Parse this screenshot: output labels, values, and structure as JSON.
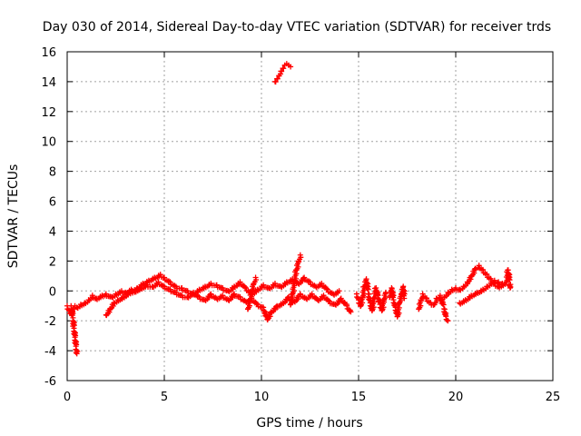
{
  "chart_data": {
    "type": "scatter",
    "title": "Day 030 of 2014, Sidereal Day-to-day VTEC variation (SDTVAR) for receiver trds",
    "xlabel": "GPS time / hours",
    "ylabel": "SDTVAR / TECUs",
    "xlim": [
      0,
      25
    ],
    "ylim": [
      -6,
      16
    ],
    "xticks": [
      0,
      5,
      10,
      15,
      20,
      25
    ],
    "yticks": [
      -6,
      -4,
      -2,
      0,
      2,
      4,
      6,
      8,
      10,
      12,
      14,
      16
    ],
    "grid": true,
    "marker": "+",
    "color": "#ff0000",
    "series": [
      {
        "name": "SDTVAR",
        "segments": [
          [
            [
              0.0,
              -1.0
            ],
            [
              0.1,
              -1.3
            ],
            [
              0.2,
              -1.5
            ],
            [
              0.3,
              -1.2
            ],
            [
              0.4,
              -1.0
            ],
            [
              0.5,
              -1.1
            ],
            [
              0.7,
              -0.9
            ],
            [
              0.9,
              -0.8
            ],
            [
              1.1,
              -0.6
            ],
            [
              1.3,
              -0.3
            ],
            [
              1.5,
              -0.5
            ],
            [
              1.8,
              -0.3
            ],
            [
              2.0,
              -0.2
            ],
            [
              2.3,
              -0.4
            ],
            [
              2.5,
              -0.2
            ],
            [
              2.8,
              0.0
            ],
            [
              3.0,
              -0.1
            ],
            [
              3.3,
              0.1
            ],
            [
              3.6,
              0.2
            ],
            [
              3.9,
              0.5
            ],
            [
              4.2,
              0.7
            ],
            [
              4.5,
              0.9
            ],
            [
              4.8,
              1.1
            ],
            [
              5.0,
              0.9
            ],
            [
              5.3,
              0.6
            ],
            [
              5.6,
              0.3
            ],
            [
              5.9,
              0.2
            ],
            [
              6.2,
              0.0
            ],
            [
              6.5,
              -0.2
            ],
            [
              6.8,
              0.1
            ],
            [
              7.1,
              0.3
            ],
            [
              7.4,
              0.5
            ],
            [
              7.7,
              0.4
            ],
            [
              8.0,
              0.2
            ],
            [
              8.3,
              0.0
            ],
            [
              8.6,
              0.3
            ],
            [
              8.9,
              0.6
            ],
            [
              9.2,
              0.2
            ],
            [
              9.5,
              -0.2
            ],
            [
              9.8,
              0.1
            ],
            [
              10.1,
              0.4
            ],
            [
              10.4,
              0.2
            ],
            [
              10.7,
              0.5
            ],
            [
              11.0,
              0.3
            ],
            [
              11.3,
              0.6
            ],
            [
              11.6,
              0.8
            ],
            [
              11.9,
              0.5
            ],
            [
              12.2,
              0.9
            ],
            [
              12.5,
              0.6
            ],
            [
              12.8,
              0.3
            ],
            [
              13.1,
              0.5
            ],
            [
              13.4,
              0.1
            ],
            [
              13.7,
              -0.2
            ],
            [
              14.0,
              0.0
            ]
          ],
          [
            [
              0.2,
              -1.0
            ],
            [
              0.3,
              -1.8
            ],
            [
              0.35,
              -2.5
            ],
            [
              0.4,
              -3.1
            ],
            [
              0.45,
              -3.7
            ],
            [
              0.5,
              -4.2
            ]
          ],
          [
            [
              2.0,
              -1.6
            ],
            [
              2.2,
              -1.2
            ],
            [
              2.4,
              -0.8
            ],
            [
              2.6,
              -0.6
            ],
            [
              2.9,
              -0.4
            ],
            [
              3.2,
              -0.1
            ],
            [
              3.5,
              0.0
            ],
            [
              3.8,
              0.2
            ],
            [
              4.1,
              0.4
            ],
            [
              4.4,
              0.3
            ],
            [
              4.7,
              0.6
            ],
            [
              5.0,
              0.3
            ],
            [
              5.3,
              0.1
            ],
            [
              5.6,
              -0.1
            ],
            [
              5.9,
              -0.3
            ],
            [
              6.2,
              -0.4
            ],
            [
              6.5,
              -0.1
            ],
            [
              6.8,
              -0.4
            ],
            [
              7.1,
              -0.6
            ],
            [
              7.4,
              -0.2
            ],
            [
              7.7,
              -0.5
            ],
            [
              8.0,
              -0.3
            ],
            [
              8.3,
              -0.6
            ],
            [
              8.6,
              -0.2
            ],
            [
              8.9,
              -0.4
            ],
            [
              9.2,
              -0.7
            ],
            [
              9.5,
              -0.5
            ],
            [
              9.8,
              -0.9
            ],
            [
              10.1,
              -1.1
            ],
            [
              10.3,
              -1.9
            ],
            [
              10.5,
              -1.4
            ],
            [
              10.8,
              -1.0
            ],
            [
              11.1,
              -0.8
            ],
            [
              11.4,
              -0.4
            ],
            [
              11.7,
              -0.7
            ],
            [
              12.0,
              -0.2
            ],
            [
              12.3,
              -0.5
            ],
            [
              12.6,
              -0.2
            ],
            [
              12.9,
              -0.6
            ],
            [
              13.2,
              -0.3
            ],
            [
              13.5,
              -0.7
            ],
            [
              13.8,
              -0.9
            ],
            [
              14.1,
              -0.5
            ],
            [
              14.4,
              -1.0
            ],
            [
              14.6,
              -1.4
            ]
          ],
          [
            [
              9.3,
              -1.2
            ],
            [
              9.4,
              -0.6
            ],
            [
              9.5,
              0.0
            ],
            [
              9.6,
              0.5
            ],
            [
              9.7,
              0.9
            ]
          ],
          [
            [
              11.5,
              -0.9
            ],
            [
              11.6,
              -0.2
            ],
            [
              11.7,
              0.6
            ],
            [
              11.8,
              1.4
            ],
            [
              11.9,
              2.0
            ],
            [
              12.0,
              2.4
            ]
          ],
          [
            [
              10.7,
              14.0
            ],
            [
              10.8,
              14.2
            ],
            [
              10.9,
              14.4
            ],
            [
              11.0,
              14.7
            ],
            [
              11.1,
              14.9
            ],
            [
              11.2,
              15.1
            ],
            [
              11.3,
              15.2
            ],
            [
              11.4,
              15.1
            ],
            [
              11.5,
              15.0
            ]
          ],
          [
            [
              14.9,
              -0.2
            ],
            [
              15.0,
              -0.6
            ],
            [
              15.1,
              -1.0
            ],
            [
              15.2,
              -0.4
            ],
            [
              15.3,
              0.3
            ],
            [
              15.4,
              0.8
            ],
            [
              15.5,
              -0.2
            ],
            [
              15.6,
              -0.8
            ],
            [
              15.7,
              -1.3
            ],
            [
              15.8,
              -0.5
            ],
            [
              15.9,
              0.2
            ],
            [
              16.0,
              -0.3
            ],
            [
              16.1,
              -0.9
            ],
            [
              16.2,
              -1.3
            ],
            [
              16.3,
              -0.6
            ],
            [
              16.4,
              -0.1
            ]
          ],
          [
            [
              16.6,
              -0.4
            ],
            [
              16.7,
              0.2
            ],
            [
              16.8,
              -0.6
            ],
            [
              16.9,
              -1.1
            ],
            [
              17.0,
              -1.7
            ],
            [
              17.1,
              -0.8
            ],
            [
              17.2,
              -0.2
            ],
            [
              17.3,
              0.3
            ],
            [
              17.35,
              -0.5
            ]
          ],
          [
            [
              18.1,
              -1.2
            ],
            [
              18.2,
              -0.6
            ],
            [
              18.3,
              -0.2
            ],
            [
              18.5,
              -0.5
            ],
            [
              18.7,
              -0.8
            ],
            [
              18.9,
              -0.9
            ],
            [
              19.0,
              -0.5
            ],
            [
              19.2,
              -0.3
            ],
            [
              19.4,
              -1.2
            ],
            [
              19.5,
              -1.7
            ],
            [
              19.6,
              -2.0
            ]
          ],
          [
            [
              19.4,
              -0.4
            ],
            [
              19.6,
              -0.1
            ],
            [
              19.8,
              0.1
            ],
            [
              20.0,
              0.2
            ],
            [
              20.2,
              0.1
            ],
            [
              20.4,
              0.3
            ],
            [
              20.6,
              0.6
            ],
            [
              20.8,
              1.0
            ],
            [
              21.0,
              1.5
            ],
            [
              21.2,
              1.7
            ],
            [
              21.4,
              1.4
            ],
            [
              21.6,
              1.1
            ],
            [
              21.8,
              0.8
            ],
            [
              22.0,
              0.5
            ],
            [
              22.2,
              0.3
            ],
            [
              22.4,
              0.4
            ],
            [
              22.6,
              0.6
            ],
            [
              22.7,
              1.4
            ],
            [
              22.8,
              0.2
            ]
          ],
          [
            [
              20.2,
              -0.8
            ],
            [
              20.5,
              -0.6
            ],
            [
              20.8,
              -0.3
            ],
            [
              21.1,
              -0.1
            ],
            [
              21.4,
              0.1
            ],
            [
              21.6,
              0.3
            ],
            [
              21.8,
              0.5
            ],
            [
              22.0,
              0.7
            ],
            [
              22.2,
              0.6
            ],
            [
              22.4,
              0.5
            ]
          ]
        ]
      }
    ]
  }
}
